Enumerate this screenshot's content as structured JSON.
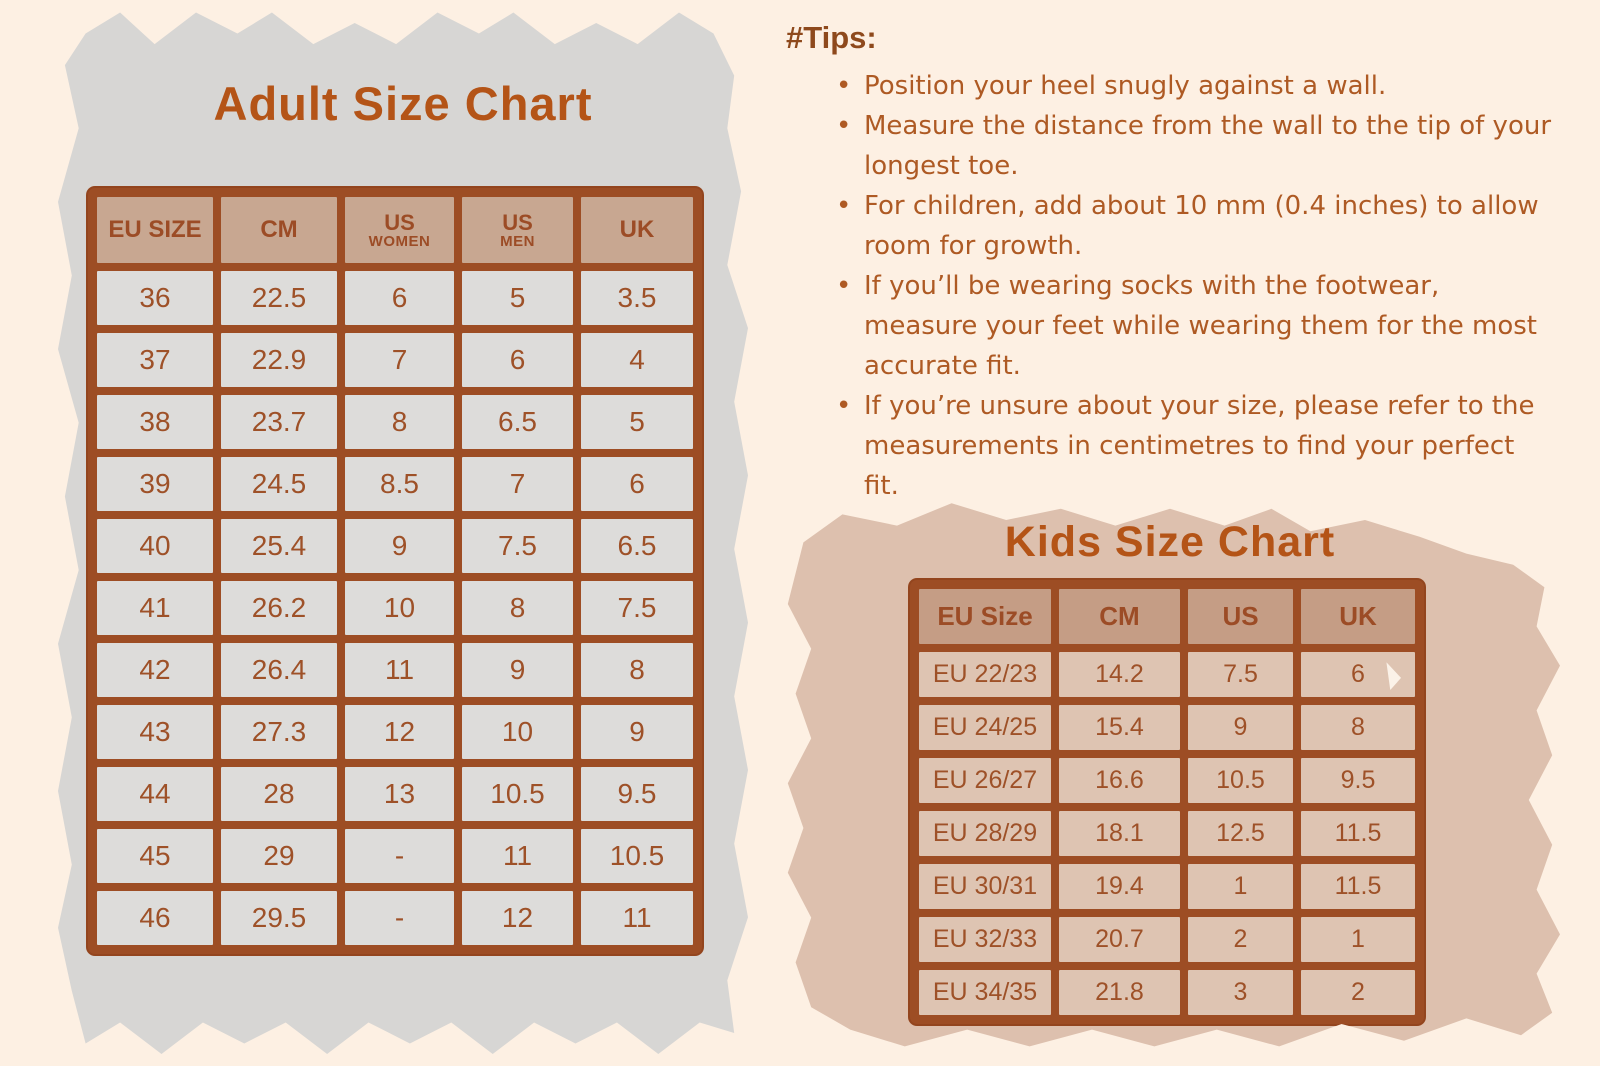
{
  "colors": {
    "page_bg": "#fdf0e3",
    "panel_gray": "#d7d6d4",
    "panel_rose": "#ddc0ae",
    "grid_brown": "#9d4d24",
    "title_rust": "#b45417",
    "cell_text": "#9e5128",
    "adult_header_bg": "#c8a791",
    "adult_cell_bg": "#dddcda",
    "kids_header_bg": "#c59d85",
    "kids_cell_bg": "#dec4b2",
    "tips_heading_color": "#8e491c",
    "tips_text_color": "#ae5a24"
  },
  "adult_chart": {
    "title": "Adult Size Chart",
    "headers": {
      "eu_size": "EU SIZE",
      "cm": "CM",
      "us_women": {
        "top": "US",
        "bottom": "WOMEN"
      },
      "us_men": {
        "top": "US",
        "bottom": "MEN"
      },
      "uk": "UK"
    },
    "rows": [
      [
        "36",
        "22.5",
        "6",
        "5",
        "3.5"
      ],
      [
        "37",
        "22.9",
        "7",
        "6",
        "4"
      ],
      [
        "38",
        "23.7",
        "8",
        "6.5",
        "5"
      ],
      [
        "39",
        "24.5",
        "8.5",
        "7",
        "6"
      ],
      [
        "40",
        "25.4",
        "9",
        "7.5",
        "6.5"
      ],
      [
        "41",
        "26.2",
        "10",
        "8",
        "7.5"
      ],
      [
        "42",
        "26.4",
        "11",
        "9",
        "8"
      ],
      [
        "43",
        "27.3",
        "12",
        "10",
        "9"
      ],
      [
        "44",
        "28",
        "13",
        "10.5",
        "9.5"
      ],
      [
        "45",
        "29",
        "-",
        "11",
        "10.5"
      ],
      [
        "46",
        "29.5",
        "-",
        "12",
        "11"
      ]
    ]
  },
  "tips": {
    "heading": "#Tips:",
    "bullet_glyph": "•",
    "items": [
      "Position your heel snugly against a wall.",
      "Measure the distance from the wall to the tip of your longest toe.",
      "For children, add about 10 mm (0.4 inches) to allow room for growth.",
      "If you’ll be wearing socks with the footwear, measure your feet while wearing them for the most accurate fit.",
      "If you’re unsure about your size, please refer to the measurements in centimetres to find your perfect fit."
    ]
  },
  "kids_chart": {
    "title": "Kids Size Chart",
    "headers": [
      "EU Size",
      "CM",
      "US",
      "UK"
    ],
    "rows": [
      [
        "EU 22/23",
        "14.2",
        "7.5",
        "6"
      ],
      [
        "EU 24/25",
        "15.4",
        "9",
        "8"
      ],
      [
        "EU 26/27",
        "16.6",
        "10.5",
        "9.5"
      ],
      [
        "EU 28/29",
        "18.1",
        "12.5",
        "11.5"
      ],
      [
        "EU 30/31",
        "19.4",
        "1",
        "11.5"
      ],
      [
        "EU 32/33",
        "20.7",
        "2",
        "1"
      ],
      [
        "EU 34/35",
        "21.8",
        "3",
        "2"
      ]
    ]
  }
}
